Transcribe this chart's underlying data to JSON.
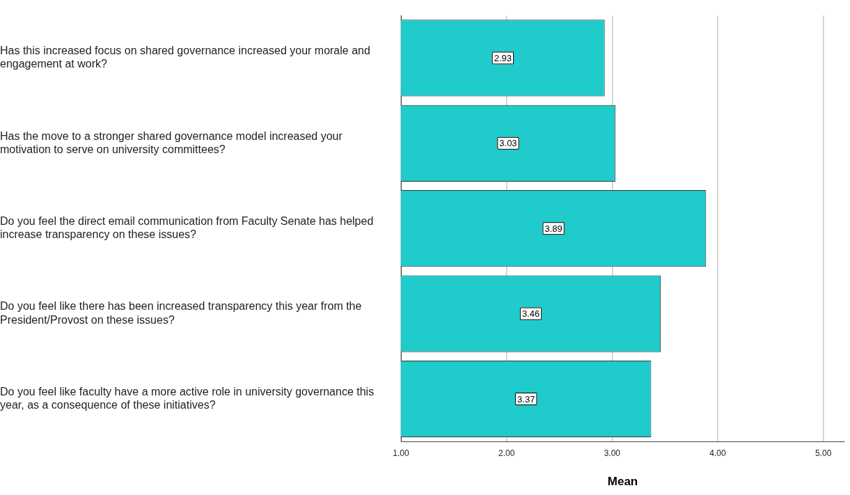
{
  "chart_data": {
    "type": "bar",
    "orientation": "horizontal",
    "xlabel": "Mean",
    "categories": [
      "Has this increased focus on shared governance increased your morale and engagement at work?",
      "Has the move to a stronger shared governance model increased your motivation to serve on university committees?",
      "Do you feel the direct email communication from Faculty Senate has helped increase transparency on these issues?",
      "Do you feel like there has been increased transparency this year from the President/Provost on these issues?",
      "Do you feel like faculty have a more active role in university governance this year, as a consequence of these initiatives?"
    ],
    "values": [
      2.93,
      3.03,
      3.89,
      3.46,
      3.37
    ],
    "color": "#1fcbcb",
    "xlim": [
      1,
      5.2
    ],
    "xticks": [
      {
        "value": 1,
        "label": "1.00"
      },
      {
        "value": 2,
        "label": "2.00"
      },
      {
        "value": 3,
        "label": "3.00"
      },
      {
        "value": 4,
        "label": "4.00"
      },
      {
        "value": 5,
        "label": "5.00"
      }
    ],
    "grid": "x",
    "data_labels": true,
    "legend": false
  }
}
